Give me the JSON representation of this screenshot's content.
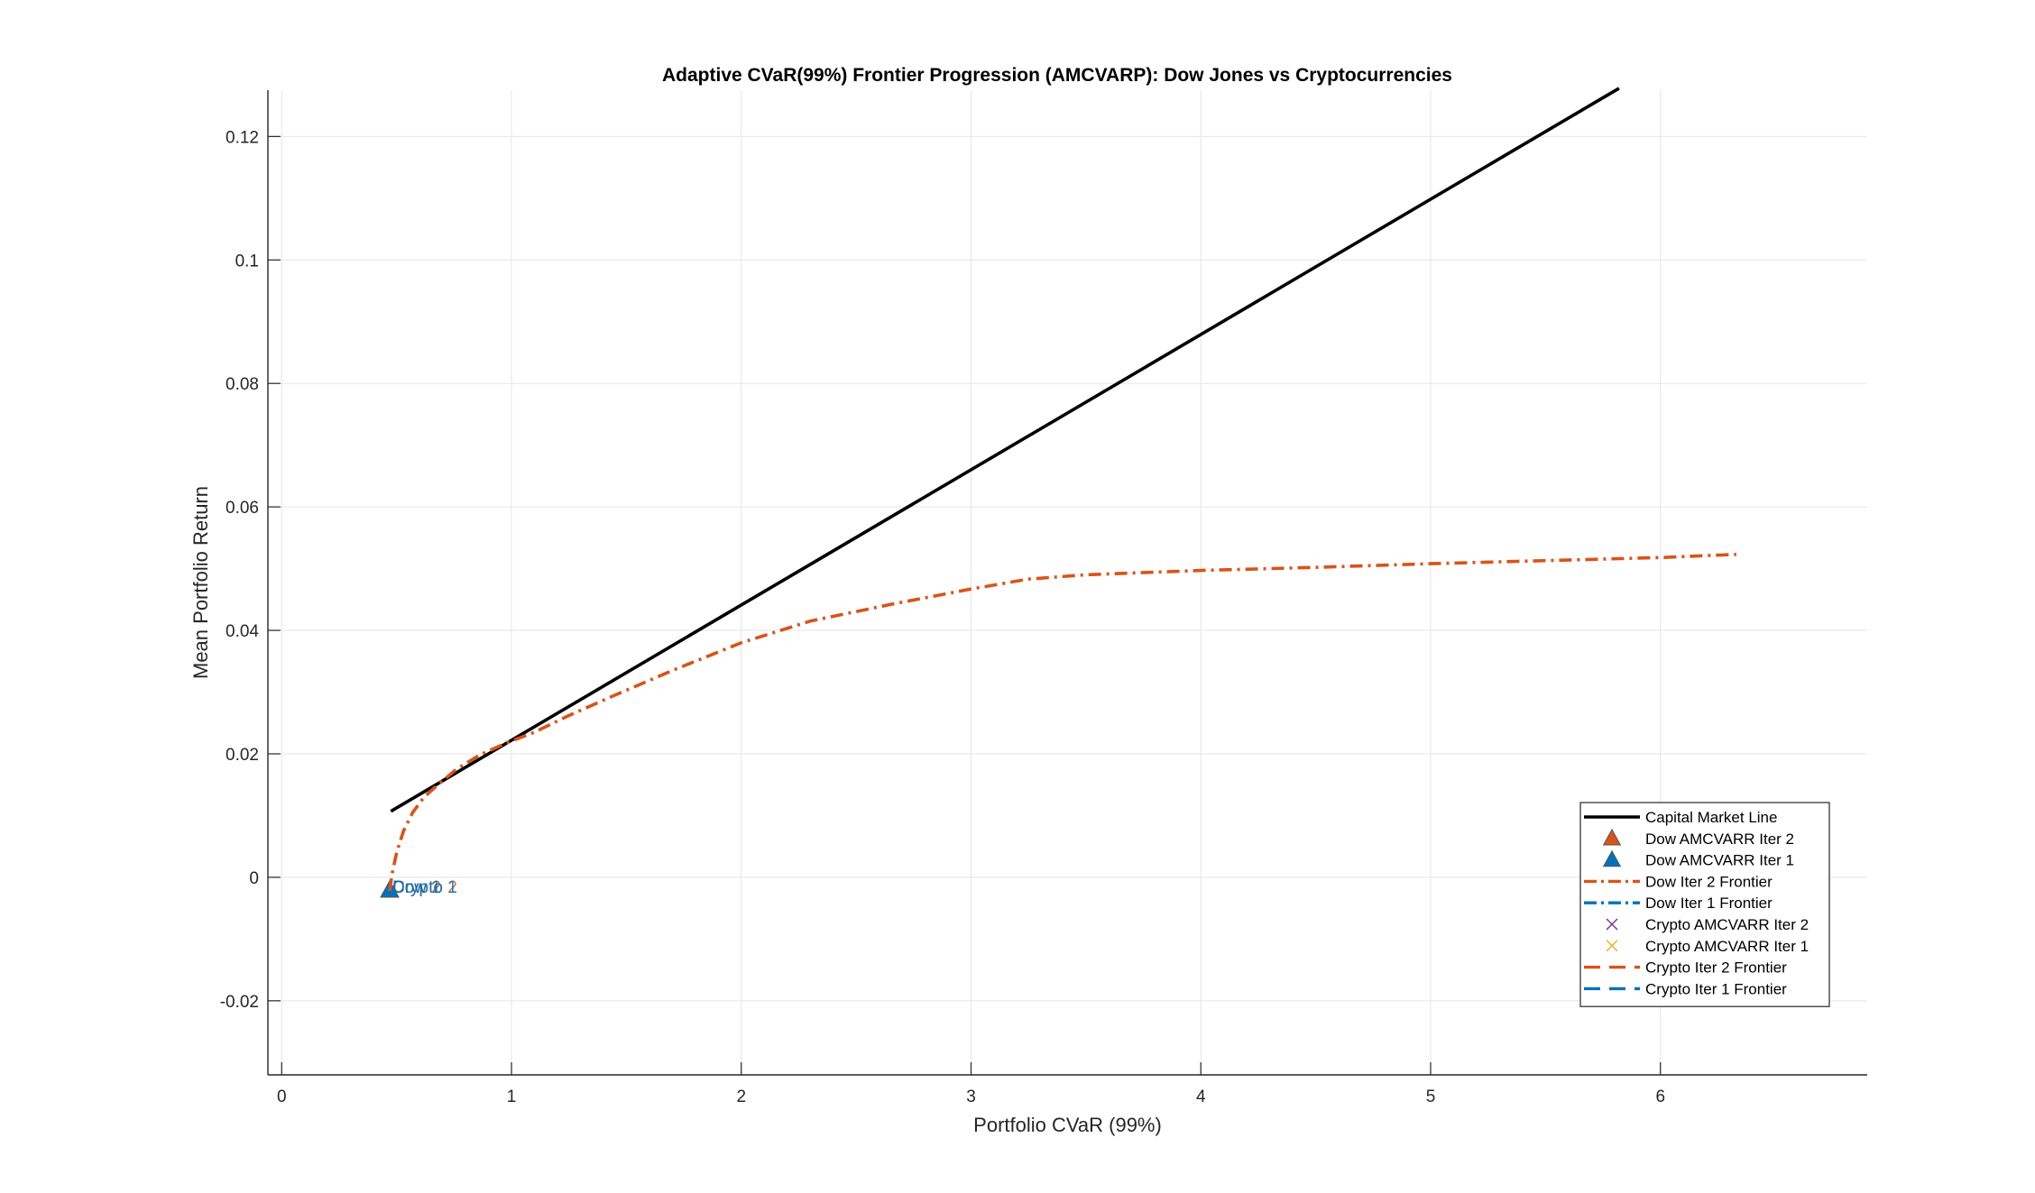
{
  "chart_data": {
    "type": "line",
    "title": "Adaptive CVaR(99%) Frontier Progression (AMCVARP): Dow Jones vs Cryptocurrencies",
    "xlabel": "Portfolio CVaR (99%)",
    "ylabel": "Mean Portfolio Return",
    "xlim": [
      -0.06,
      6.9
    ],
    "ylim": [
      -0.032,
      0.1275
    ],
    "xticks": [
      0,
      1,
      2,
      3,
      4,
      5,
      6
    ],
    "yticks": [
      -0.02,
      0,
      0.02,
      0.04,
      0.06,
      0.08,
      0.1,
      0.12
    ],
    "xtick_labels": [
      "0",
      "1",
      "2",
      "3",
      "4",
      "5",
      "6"
    ],
    "ytick_labels": [
      "-0.02",
      "0",
      "0.02",
      "0.04",
      "0.06",
      "0.08",
      "0.1",
      "0.12"
    ],
    "grid": true,
    "legend_position": "bottom-right",
    "colors": {
      "cml": "#000000",
      "iter2": "#D95319",
      "iter1": "#0072BD",
      "crypto_iter2_marker": "#7E2F8E",
      "crypto_iter1_marker": "#EDB120",
      "grid": "#e5e5e5",
      "axis": "#262626"
    },
    "series": [
      {
        "name": "Capital Market Line",
        "style": "solid",
        "color": "#000000",
        "x": [
          0.475,
          5.82
        ],
        "y": [
          0.0107,
          0.1278
        ]
      },
      {
        "name": "Dow AMCVARR Iter 2",
        "style": "marker-triangle",
        "color": "#D95319",
        "x": [
          0.47
        ],
        "y": [
          -0.0022
        ]
      },
      {
        "name": "Dow AMCVARR Iter 1",
        "style": "marker-triangle",
        "color": "#0072BD",
        "x": [
          0.47
        ],
        "y": [
          -0.0022
        ]
      },
      {
        "name": "Dow Iter 2 Frontier",
        "style": "dashdot",
        "color": "#D95319",
        "x": [
          0.47,
          0.48,
          0.5,
          0.53,
          0.57,
          0.62,
          0.68,
          0.76,
          0.86,
          0.98,
          1.1,
          1.25,
          1.45,
          1.7,
          2.0,
          2.3,
          2.65,
          3.0,
          3.25,
          3.5,
          4.0,
          4.5,
          5.0,
          5.5,
          6.0,
          6.33
        ],
        "y": [
          -0.0022,
          0.0005,
          0.004,
          0.0075,
          0.0105,
          0.013,
          0.015,
          0.0175,
          0.0198,
          0.0218,
          0.0235,
          0.0262,
          0.0295,
          0.0335,
          0.038,
          0.0415,
          0.0442,
          0.0467,
          0.0483,
          0.049,
          0.0497,
          0.0502,
          0.0508,
          0.0513,
          0.0518,
          0.0523
        ]
      },
      {
        "name": "Dow Iter 1 Frontier",
        "style": "dashdot",
        "color": "#0072BD",
        "x": [],
        "y": []
      },
      {
        "name": "Crypto AMCVARR Iter 2",
        "style": "marker-x",
        "color": "#7E2F8E",
        "x": [],
        "y": []
      },
      {
        "name": "Crypto AMCVARR Iter 1",
        "style": "marker-x",
        "color": "#EDB120",
        "x": [],
        "y": []
      },
      {
        "name": "Crypto Iter 2 Frontier",
        "style": "dashed",
        "color": "#D95319",
        "x": [],
        "y": []
      },
      {
        "name": "Crypto Iter 1 Frontier",
        "style": "dashed",
        "color": "#0072BD",
        "x": [],
        "y": []
      }
    ],
    "annotations": [
      {
        "text": "Dow 2",
        "x": 0.47,
        "y": -0.0012,
        "color": "#D95319"
      },
      {
        "text": "Crypto 2",
        "x": 0.47,
        "y": -0.0012,
        "color": "#D95319"
      },
      {
        "text": "Dow 1",
        "x": 0.47,
        "y": -0.0012,
        "color": "#0072BD"
      },
      {
        "text": "Crypto 1",
        "x": 0.47,
        "y": -0.0012,
        "color": "#0072BD"
      }
    ]
  }
}
